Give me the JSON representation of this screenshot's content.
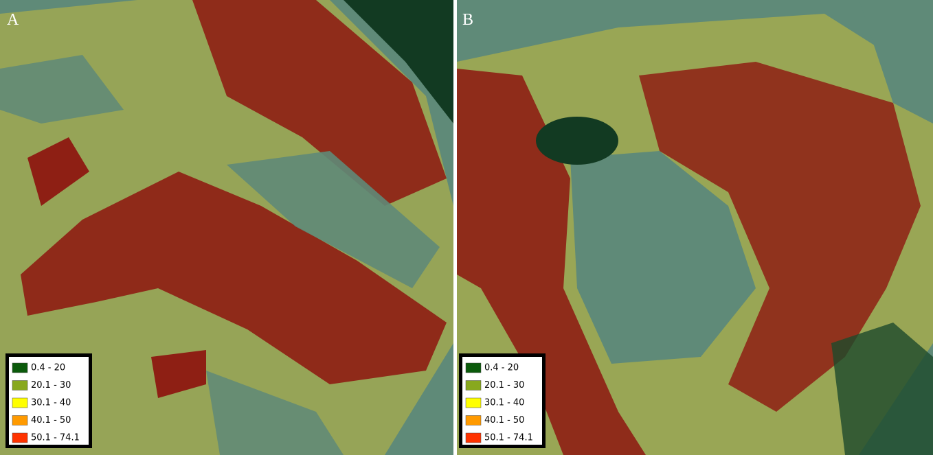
{
  "panels": [
    {
      "label": "A",
      "legend": [
        {
          "label": "0.4 - 20",
          "color": "#0b5a0b"
        },
        {
          "label": "20.1 - 30",
          "color": "#88a81e"
        },
        {
          "label": "30.1 - 40",
          "color": "#ffff00"
        },
        {
          "label": "40.1 - 50",
          "color": "#ff9a00"
        },
        {
          "label": "50.1 - 74.1",
          "color": "#ff3300"
        }
      ]
    },
    {
      "label": "B",
      "legend": [
        {
          "label": "0.4 - 20",
          "color": "#0b5a0b"
        },
        {
          "label": "20.1 - 30",
          "color": "#88a81e"
        },
        {
          "label": "30.1 - 40",
          "color": "#ffff00"
        },
        {
          "label": "40.1 - 50",
          "color": "#ff9a00"
        },
        {
          "label": "50.1 - 74.1",
          "color": "#ff3300"
        }
      ]
    }
  ]
}
